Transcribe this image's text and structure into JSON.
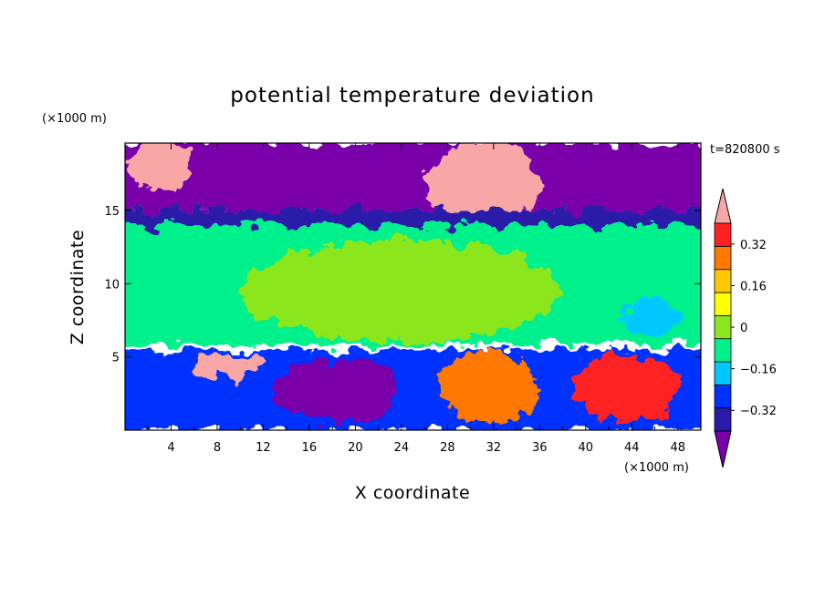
{
  "chart_data": {
    "type": "heatmap",
    "title": "potential temperature deviation",
    "xlabel": "X coordinate",
    "ylabel": "Z coordinate",
    "x_unit": "(×1000 m)",
    "y_unit": "(×1000 m)",
    "time_label": "t=820800 s",
    "xlim": [
      0,
      50
    ],
    "ylim": [
      0,
      19.6
    ],
    "x_ticks": [
      4,
      8,
      12,
      16,
      20,
      24,
      28,
      32,
      36,
      40,
      44,
      48
    ],
    "y_ticks": [
      5,
      10,
      15
    ],
    "colorbar": {
      "levels": [
        -0.4,
        -0.32,
        -0.24,
        -0.16,
        -0.08,
        0,
        0.08,
        0.16,
        0.24,
        0.32,
        0.4
      ],
      "labels": [
        "0.32",
        "0.16",
        "0",
        "−0.16",
        "−0.32"
      ],
      "label_values": [
        0.32,
        0.16,
        0,
        -0.16,
        -0.32
      ],
      "colors": [
        "#7a00aa",
        "#2a1aa8",
        "#0032ff",
        "#00c8ff",
        "#00f08c",
        "#8ce61e",
        "#ffff00",
        "#ffc800",
        "#ff7800",
        "#ff2020",
        "#f8a6a6"
      ],
      "extend": "both"
    },
    "grid": false,
    "legend": "right",
    "regions": [
      {
        "x": [
          0,
          50
        ],
        "z": [
          15,
          19.6
        ],
        "value": -0.45
      },
      {
        "x": [
          26,
          36
        ],
        "z": [
          14,
          19.6
        ],
        "value": 0.45
      },
      {
        "x": [
          0,
          6
        ],
        "z": [
          16.5,
          19.6
        ],
        "value": 0.45
      },
      {
        "x": [
          0,
          50
        ],
        "z": [
          14,
          15
        ],
        "value": -0.3
      },
      {
        "x": [
          0,
          50
        ],
        "z": [
          5.8,
          14
        ],
        "value": -0.02
      },
      {
        "x": [
          10,
          38
        ],
        "z": [
          6,
          13
        ],
        "value": 0.05
      },
      {
        "x": [
          43,
          48
        ],
        "z": [
          6.5,
          9
        ],
        "value": -0.12
      },
      {
        "x": [
          0,
          50
        ],
        "z": [
          0,
          5.5
        ],
        "value": -0.2
      },
      {
        "x": [
          27,
          36
        ],
        "z": [
          0.5,
          5.3
        ],
        "value": 0.3
      },
      {
        "x": [
          39,
          48
        ],
        "z": [
          0.5,
          5.3
        ],
        "value": 0.35
      },
      {
        "x": [
          13,
          24
        ],
        "z": [
          0.5,
          5
        ],
        "value": -0.45
      },
      {
        "x": [
          6,
          12
        ],
        "z": [
          3.5,
          5.3
        ],
        "value": 0.4
      }
    ]
  }
}
